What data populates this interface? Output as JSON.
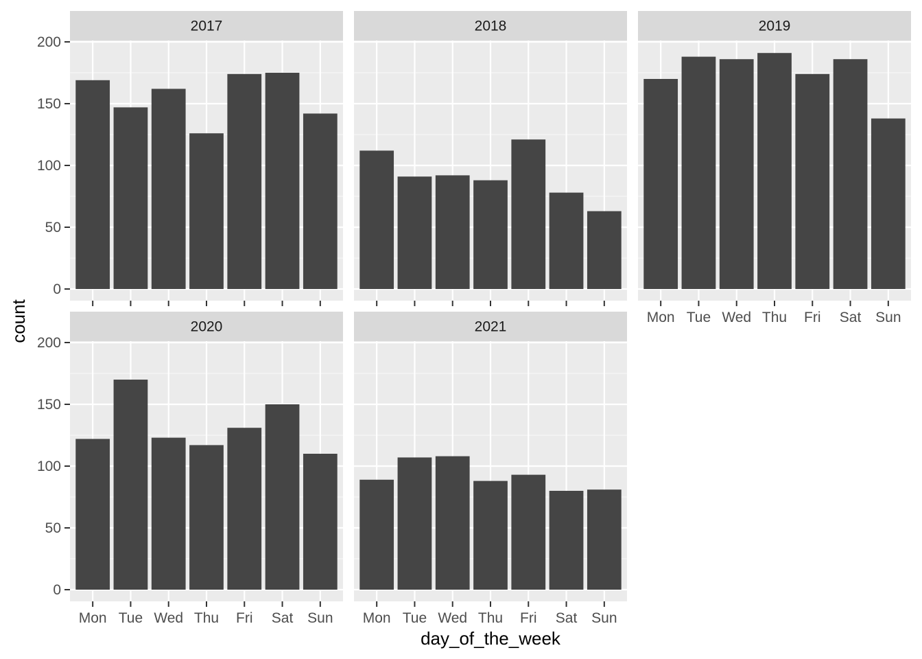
{
  "chart_data": {
    "type": "bar",
    "xlabel": "day_of_the_week",
    "ylabel": "count",
    "ylim": [
      0,
      200
    ],
    "y_ticks": [
      0,
      50,
      100,
      150,
      200
    ],
    "grid": true,
    "categories": [
      "Mon",
      "Tue",
      "Wed",
      "Thu",
      "Fri",
      "Sat",
      "Sun"
    ],
    "bar_color": "#454545",
    "panel_background": "#ebebeb",
    "strip_background": "#d9d9d9",
    "facets": [
      {
        "name": "2017",
        "values": [
          169,
          147,
          162,
          126,
          174,
          175,
          142
        ]
      },
      {
        "name": "2018",
        "values": [
          112,
          91,
          92,
          88,
          121,
          78,
          63
        ]
      },
      {
        "name": "2019",
        "values": [
          170,
          188,
          186,
          191,
          174,
          186,
          138
        ]
      },
      {
        "name": "2020",
        "values": [
          122,
          170,
          123,
          117,
          131,
          150,
          110
        ]
      },
      {
        "name": "2021",
        "values": [
          89,
          107,
          108,
          88,
          93,
          80,
          81
        ]
      }
    ]
  }
}
